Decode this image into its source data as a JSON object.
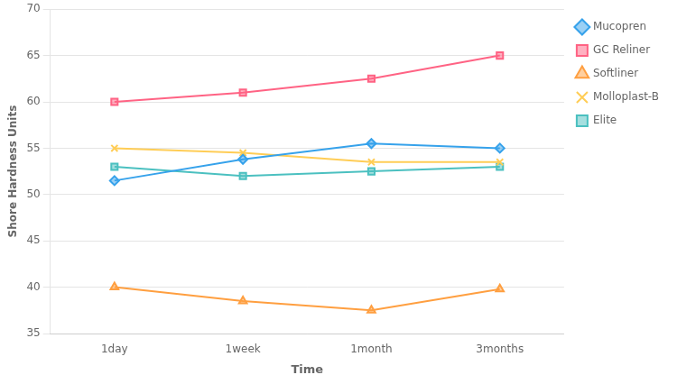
{
  "chart_data": {
    "type": "line",
    "categories": [
      "1day",
      "1week",
      "1month",
      "3months"
    ],
    "series": [
      {
        "name": "Mucopren",
        "values": [
          51.5,
          53.8,
          55.5,
          55.0
        ],
        "marker": "diamond"
      },
      {
        "name": "GC Reliner",
        "values": [
          60.0,
          61.0,
          62.5,
          65.0
        ],
        "marker": "square"
      },
      {
        "name": "Softliner",
        "values": [
          40.0,
          38.5,
          37.5,
          39.8
        ],
        "marker": "triangle"
      },
      {
        "name": "Molloplast-B",
        "values": [
          55.0,
          54.5,
          53.5,
          53.5
        ],
        "marker": "x"
      },
      {
        "name": "Elite",
        "values": [
          53.0,
          52.0,
          52.5,
          53.0
        ],
        "marker": "square"
      }
    ],
    "xlabel": "Time",
    "ylabel": "Shore Hardness Units",
    "ylim": [
      35,
      70
    ],
    "yticks": [
      35,
      40,
      45,
      50,
      55,
      60,
      65,
      70
    ],
    "grid": true,
    "legend": "right"
  }
}
